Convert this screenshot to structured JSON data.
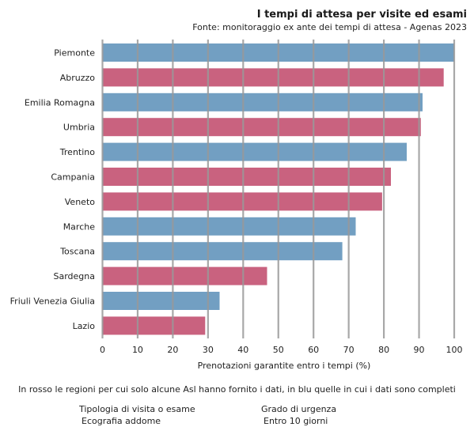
{
  "header": {
    "title": "I tempi di attesa per visite ed esami",
    "subtitle": "Fonte: monitoraggio ex ante dei tempi di attesa - Agenas 2023"
  },
  "note": "In rosso le regioni per cui solo alcune Asl hanno fornito i dati, in blu quelle in cui i dati sono completi",
  "filters": {
    "tipologia_label": "Tipologia di visita o esame",
    "tipologia_value": "Ecografia addome",
    "urgenza_label": "Grado di urgenza",
    "urgenza_value": "Entro 10 giorni"
  },
  "colors": {
    "complete": "#729fc2",
    "partial": "#c9627f",
    "grid": "#999999"
  },
  "chart_data": {
    "type": "bar",
    "orientation": "horizontal",
    "title": "I tempi di attesa per visite ed esami",
    "subtitle": "Fonte: monitoraggio ex ante dei tempi di attesa - Agenas 2023",
    "xlabel": "Prenotazioni garantite entro i tempi (%)",
    "ylabel": "",
    "xlim": [
      0,
      100
    ],
    "xticks": [
      0,
      10,
      20,
      30,
      40,
      50,
      60,
      70,
      80,
      90,
      100
    ],
    "grid": true,
    "categories": [
      "Piemonte",
      "Abruzzo",
      "Emilia Romagna",
      "Umbria",
      "Trentino",
      "Campania",
      "Veneto",
      "Marche",
      "Toscana",
      "Sardegna",
      "Friuli Venezia Giulia",
      "Lazio"
    ],
    "values": [
      100,
      97,
      91,
      90.5,
      86.5,
      82,
      79.5,
      72,
      68.2,
      46.8,
      33.3,
      29.2
    ],
    "data_status": [
      "complete",
      "partial",
      "complete",
      "partial",
      "complete",
      "partial",
      "partial",
      "complete",
      "complete",
      "partial",
      "complete",
      "partial"
    ]
  }
}
